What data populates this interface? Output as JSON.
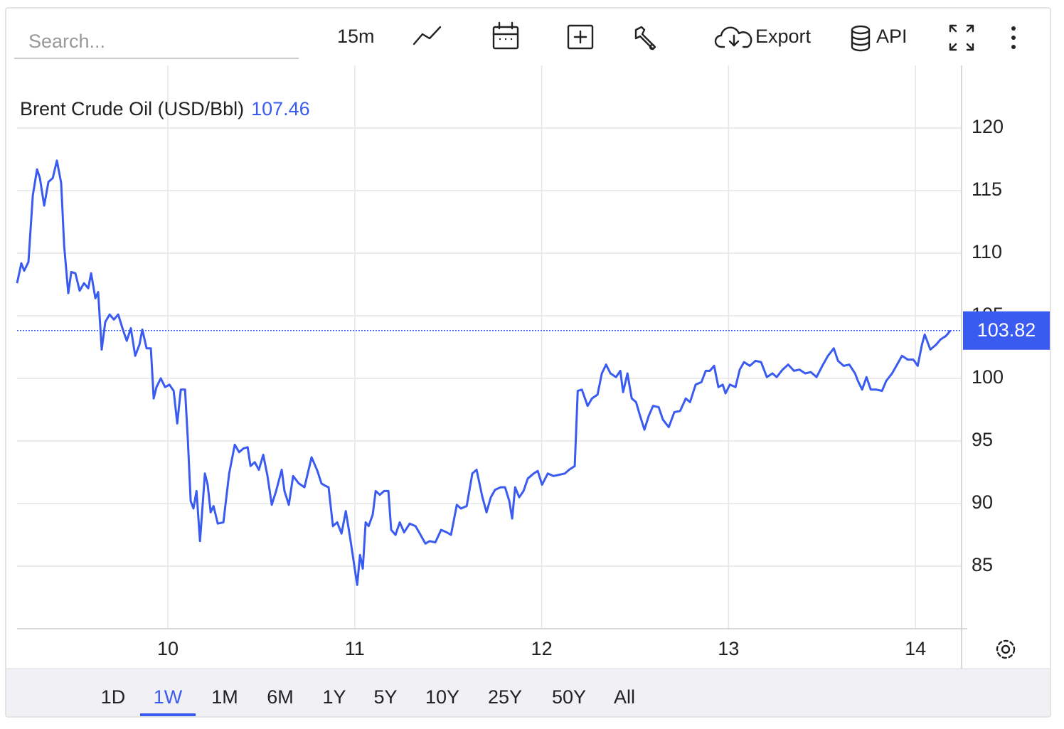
{
  "toolbar": {
    "search": "Search...",
    "interval": "15m",
    "export": "Export",
    "api": "API"
  },
  "ranges": [
    "1D",
    "1W",
    "1M",
    "6M",
    "1Y",
    "5Y",
    "10Y",
    "25Y",
    "50Y",
    "All"
  ],
  "active_range": 1,
  "chart_data": {
    "type": "line",
    "title": "Brent Crude Oil (USD/Bbl)",
    "quote": 107.46,
    "last_value": 103.82,
    "color": "#3a5bf0",
    "grid": true,
    "xlim": [
      9.193,
      14.247
    ],
    "xticks": [
      10,
      11,
      12,
      13,
      14
    ],
    "ylim": [
      80,
      125
    ],
    "yticks": [
      85,
      90,
      95,
      100,
      105,
      110,
      115,
      120
    ],
    "x": [
      9.193,
      9.216,
      9.231,
      9.254,
      9.277,
      9.3,
      9.315,
      9.338,
      9.361,
      9.384,
      9.406,
      9.429,
      9.445,
      9.467,
      9.483,
      9.505,
      9.528,
      9.551,
      9.574,
      9.589,
      9.612,
      9.627,
      9.646,
      9.665,
      9.688,
      9.711,
      9.734,
      9.757,
      9.78,
      9.802,
      9.825,
      9.848,
      9.863,
      9.886,
      9.909,
      9.924,
      9.939,
      9.962,
      9.985,
      10.008,
      10.031,
      10.05,
      10.069,
      10.092,
      10.107,
      10.122,
      10.137,
      10.153,
      10.172,
      10.198,
      10.213,
      10.229,
      10.244,
      10.267,
      10.297,
      10.328,
      10.358,
      10.381,
      10.404,
      10.427,
      10.442,
      10.465,
      10.487,
      10.51,
      10.533,
      10.556,
      10.579,
      10.609,
      10.624,
      10.647,
      10.67,
      10.701,
      10.731,
      10.769,
      10.8,
      10.822,
      10.845,
      10.86,
      10.883,
      10.906,
      10.929,
      10.952,
      10.975,
      11.013,
      11.028,
      11.043,
      11.058,
      11.074,
      11.096,
      11.112,
      11.134,
      11.157,
      11.18,
      11.195,
      11.218,
      11.241,
      11.264,
      11.294,
      11.325,
      11.348,
      11.378,
      11.401,
      11.431,
      11.462,
      11.492,
      11.515,
      11.546,
      11.568,
      11.599,
      11.629,
      11.652,
      11.683,
      11.705,
      11.728,
      11.751,
      11.781,
      11.804,
      11.827,
      11.842,
      11.858,
      11.88,
      11.903,
      11.926,
      11.957,
      11.979,
      12.002,
      12.033,
      12.063,
      12.094,
      12.124,
      12.147,
      12.177,
      12.193,
      12.215,
      12.246,
      12.269,
      12.299,
      12.322,
      12.345,
      12.368,
      12.398,
      12.421,
      12.436,
      12.459,
      12.482,
      12.505,
      12.527,
      12.55,
      12.573,
      12.596,
      12.626,
      12.649,
      12.68,
      12.71,
      12.741,
      12.771,
      12.794,
      12.824,
      12.855,
      12.878,
      12.9,
      12.923,
      12.946,
      12.969,
      12.984,
      13.007,
      13.037,
      13.06,
      13.083,
      13.114,
      13.144,
      13.174,
      13.205,
      13.235,
      13.258,
      13.289,
      13.319,
      13.35,
      13.38,
      13.41,
      13.441,
      13.471,
      13.502,
      13.532,
      13.563,
      13.586,
      13.616,
      13.646,
      13.677,
      13.692,
      13.715,
      13.738,
      13.761,
      13.791,
      13.821,
      13.844,
      13.875,
      13.898,
      13.928,
      13.959,
      13.989,
      14.012,
      14.035,
      14.05,
      14.08,
      14.111,
      14.134,
      14.164,
      14.187
    ],
    "values": [
      107.6,
      109.2,
      108.6,
      109.3,
      114.6,
      116.7,
      116.0,
      113.8,
      115.7,
      116.0,
      117.4,
      115.6,
      110.6,
      106.8,
      108.5,
      108.4,
      107.0,
      107.6,
      107.2,
      108.4,
      106.4,
      106.9,
      102.3,
      104.5,
      105.1,
      104.7,
      105.1,
      104.0,
      103.0,
      104.0,
      101.8,
      102.7,
      103.9,
      102.4,
      102.4,
      98.4,
      99.3,
      100.0,
      99.3,
      99.5,
      99.0,
      96.4,
      99.1,
      99.1,
      95.0,
      90.2,
      89.6,
      91.0,
      87.0,
      92.4,
      91.5,
      89.3,
      89.8,
      88.4,
      88.5,
      92.4,
      94.7,
      94.1,
      94.4,
      94.5,
      93.0,
      93.3,
      92.7,
      93.9,
      92.2,
      89.9,
      91.0,
      92.7,
      91.0,
      89.9,
      92.2,
      91.6,
      91.3,
      93.7,
      92.6,
      91.6,
      91.4,
      91.3,
      88.2,
      88.5,
      87.6,
      89.4,
      87.3,
      83.5,
      85.9,
      84.8,
      88.5,
      88.2,
      89.1,
      91.0,
      90.7,
      91.0,
      91.0,
      87.9,
      87.5,
      88.5,
      87.7,
      88.4,
      88.2,
      87.6,
      86.8,
      87.0,
      86.9,
      87.9,
      87.7,
      87.5,
      89.9,
      89.6,
      89.8,
      92.4,
      92.7,
      90.5,
      89.3,
      90.5,
      91.1,
      91.3,
      91.3,
      90.2,
      88.8,
      91.3,
      90.5,
      91.0,
      92.0,
      92.4,
      92.6,
      91.5,
      92.4,
      92.2,
      92.3,
      92.4,
      92.7,
      93.0,
      99.0,
      99.1,
      97.8,
      98.4,
      98.7,
      100.4,
      101.1,
      100.4,
      100.1,
      100.6,
      98.9,
      100.4,
      98.4,
      98.1,
      97.0,
      95.9,
      97.0,
      97.8,
      97.7,
      96.7,
      96.1,
      97.3,
      97.4,
      98.4,
      98.1,
      99.5,
      99.7,
      100.6,
      100.6,
      101.0,
      99.3,
      99.5,
      98.8,
      99.5,
      99.3,
      100.7,
      101.3,
      101.0,
      101.4,
      101.3,
      100.1,
      100.4,
      100.1,
      100.7,
      101.1,
      100.6,
      100.7,
      100.4,
      100.5,
      100.1,
      101.0,
      101.8,
      102.4,
      101.4,
      101.0,
      101.1,
      100.4,
      99.8,
      99.1,
      100.1,
      99.1,
      99.1,
      99.0,
      99.8,
      100.4,
      101.0,
      101.8,
      101.5,
      101.5,
      101.0,
      102.7,
      103.5,
      102.3,
      102.7,
      103.1,
      103.4,
      103.82
    ]
  }
}
